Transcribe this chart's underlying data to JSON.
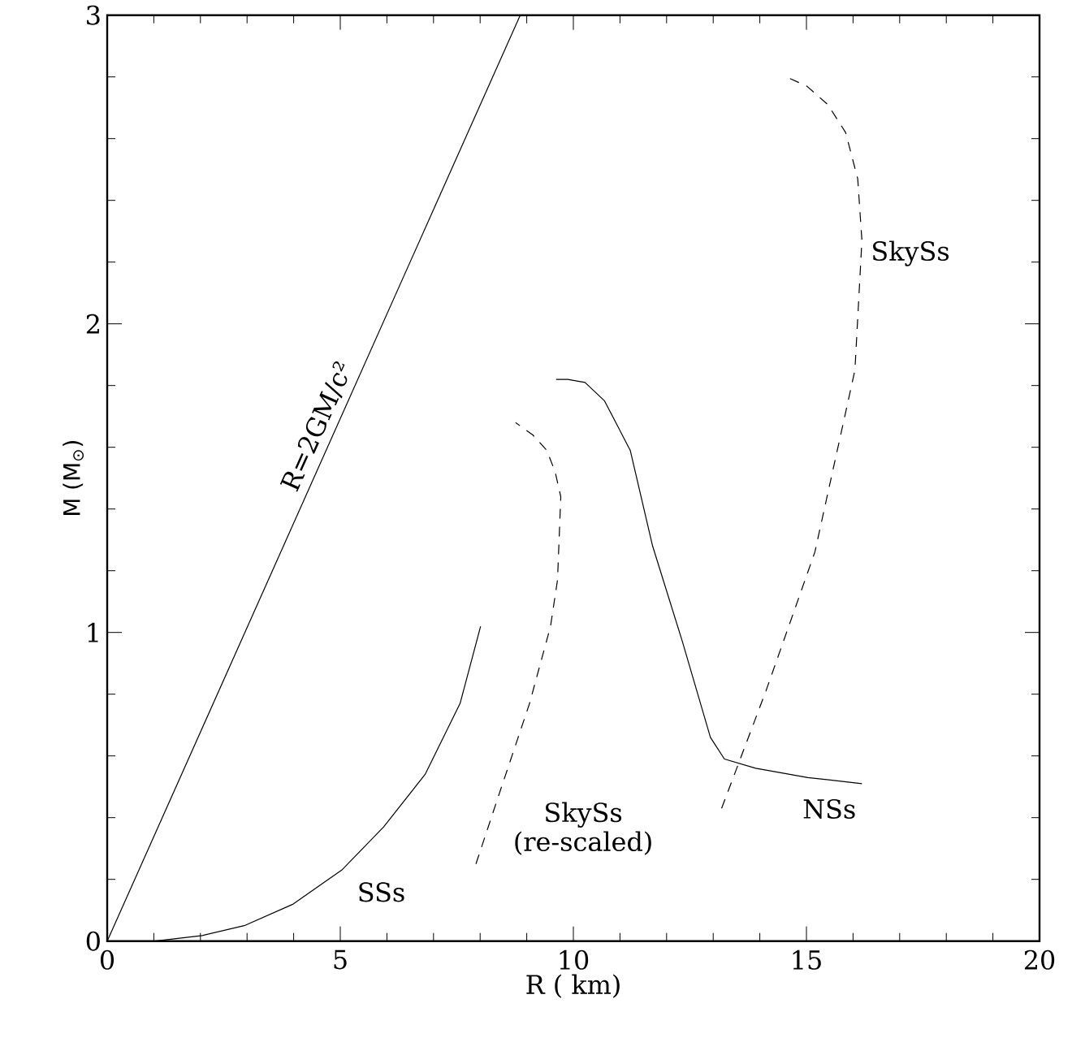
{
  "chart_data": {
    "type": "line",
    "xlabel": "R ( km)",
    "ylabel": "M (M$_{⊙}$)",
    "xlim": [
      0,
      20
    ],
    "ylim": [
      0,
      3
    ],
    "xticks": [
      0,
      5,
      10,
      15,
      20
    ],
    "yticks": [
      0,
      1,
      2,
      3
    ],
    "grid": false,
    "legend": false,
    "marker": "none",
    "series": [
      {
        "name": "R=2GM/c²",
        "color": "#000000",
        "line_style": "solid",
        "x": [
          0,
          8.86
        ],
        "values": [
          0,
          3
        ]
      },
      {
        "name": "SSs",
        "color": "#000000",
        "line_style": "solid",
        "x": [
          1.03,
          2.04,
          2.94,
          3.99,
          5.03,
          5.93,
          6.82,
          7.57,
          8.01
        ],
        "values": [
          0,
          0.018,
          0.05,
          0.12,
          0.23,
          0.37,
          0.54,
          0.77,
          1.02
        ]
      },
      {
        "name": "SkySs (re-scaled)",
        "color": "#000000",
        "line_style": "dashed",
        "x": [
          7.91,
          8.46,
          9.06,
          9.51,
          9.66,
          9.73,
          9.61,
          9.43,
          9.13,
          8.76
        ],
        "values": [
          0.25,
          0.5,
          0.77,
          1.02,
          1.17,
          1.44,
          1.52,
          1.59,
          1.64,
          1.68
        ]
      },
      {
        "name": "NSs",
        "color": "#000000",
        "line_style": "solid",
        "x": [
          9.63,
          9.88,
          10.25,
          10.67,
          11.22,
          11.7,
          12.34,
          12.94,
          13.24,
          13.91,
          15.03,
          16.19
        ],
        "values": [
          1.82,
          1.82,
          1.81,
          1.75,
          1.59,
          1.28,
          0.97,
          0.66,
          0.59,
          0.56,
          0.53,
          0.51
        ]
      },
      {
        "name": "SkySs",
        "color": "#000000",
        "line_style": "dashed",
        "x": [
          13.18,
          14.13,
          15.18,
          16.04,
          16.19,
          16.1,
          15.84,
          15.46,
          15.01,
          14.57
        ],
        "values": [
          0.43,
          0.81,
          1.26,
          1.85,
          2.27,
          2.47,
          2.62,
          2.71,
          2.77,
          2.8
        ]
      }
    ]
  }
}
